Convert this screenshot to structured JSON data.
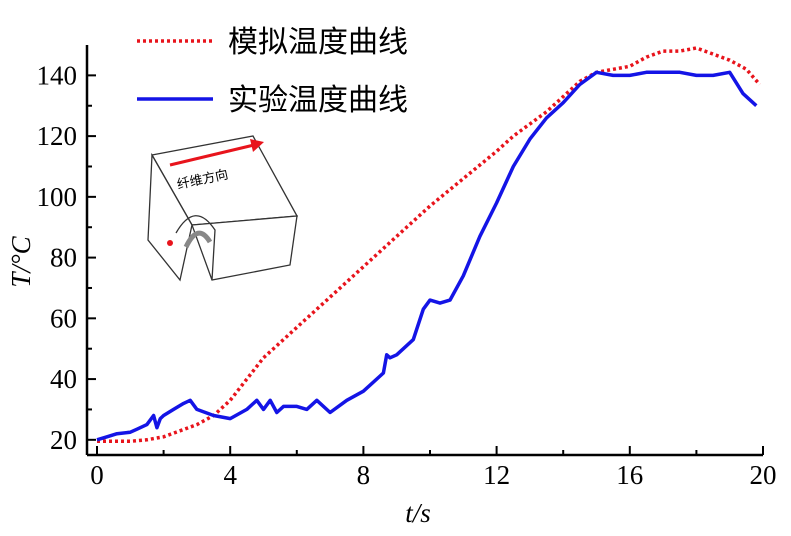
{
  "chart_data": {
    "type": "line",
    "title": "",
    "xlabel": "t/s",
    "ylabel": "T/°C",
    "xlim": [
      0,
      20
    ],
    "ylim": [
      15,
      150
    ],
    "x_ticks": [
      0,
      4,
      8,
      12,
      16,
      20
    ],
    "y_ticks": [
      20,
      40,
      60,
      80,
      100,
      120,
      140
    ],
    "legend_position": "top-left",
    "grid": false,
    "series": [
      {
        "name": "模拟温度曲线",
        "color": "#e8141c",
        "style": "dotted",
        "x": [
          0,
          0.5,
          1,
          1.5,
          2,
          2.5,
          3,
          3.5,
          4,
          4.5,
          5,
          6,
          7,
          8,
          9,
          10,
          11,
          12,
          12.5,
          13,
          13.5,
          14,
          14.5,
          15,
          15.5,
          16,
          16.5,
          17,
          17.5,
          18,
          18.5,
          19,
          19.5,
          19.9
        ],
        "y": [
          19.5,
          19.5,
          19.5,
          20,
          21,
          23,
          25,
          28,
          33,
          40,
          47,
          57,
          67,
          77,
          87,
          97,
          106,
          115,
          120,
          124,
          128,
          133,
          138,
          141,
          142,
          143,
          146,
          148,
          148,
          149,
          147,
          145,
          142,
          137
        ]
      },
      {
        "name": "实验温度曲线",
        "color": "#1414e6",
        "style": "solid",
        "x": [
          0,
          0.3,
          0.6,
          1,
          1.2,
          1.5,
          1.7,
          1.8,
          1.9,
          2,
          2.3,
          2.6,
          2.8,
          3,
          3.5,
          4,
          4.5,
          4.8,
          5,
          5.2,
          5.4,
          5.6,
          6,
          6.3,
          6.6,
          7,
          7.5,
          8,
          8.5,
          8.6,
          8.7,
          8.8,
          9,
          9.5,
          9.8,
          10,
          10.3,
          10.6,
          11,
          11.5,
          12,
          12.5,
          13,
          13.5,
          14,
          14.5,
          15,
          15.5,
          16,
          16.5,
          17,
          17.5,
          18,
          18.5,
          19,
          19.4,
          19.8
        ],
        "y": [
          20,
          21,
          22,
          22.5,
          23.5,
          25,
          28,
          24,
          27,
          28,
          30,
          32,
          33,
          30,
          28,
          27,
          30,
          33,
          30,
          33,
          29,
          31,
          31,
          30,
          33,
          29,
          33,
          36,
          41,
          42,
          48,
          47,
          48,
          53,
          63,
          66,
          65,
          66,
          74,
          87,
          98,
          110,
          119,
          126,
          131,
          137,
          141,
          140,
          140,
          141,
          141,
          141,
          140,
          140,
          141,
          134,
          130
        ]
      }
    ],
    "inset_label": "纤维方向"
  }
}
